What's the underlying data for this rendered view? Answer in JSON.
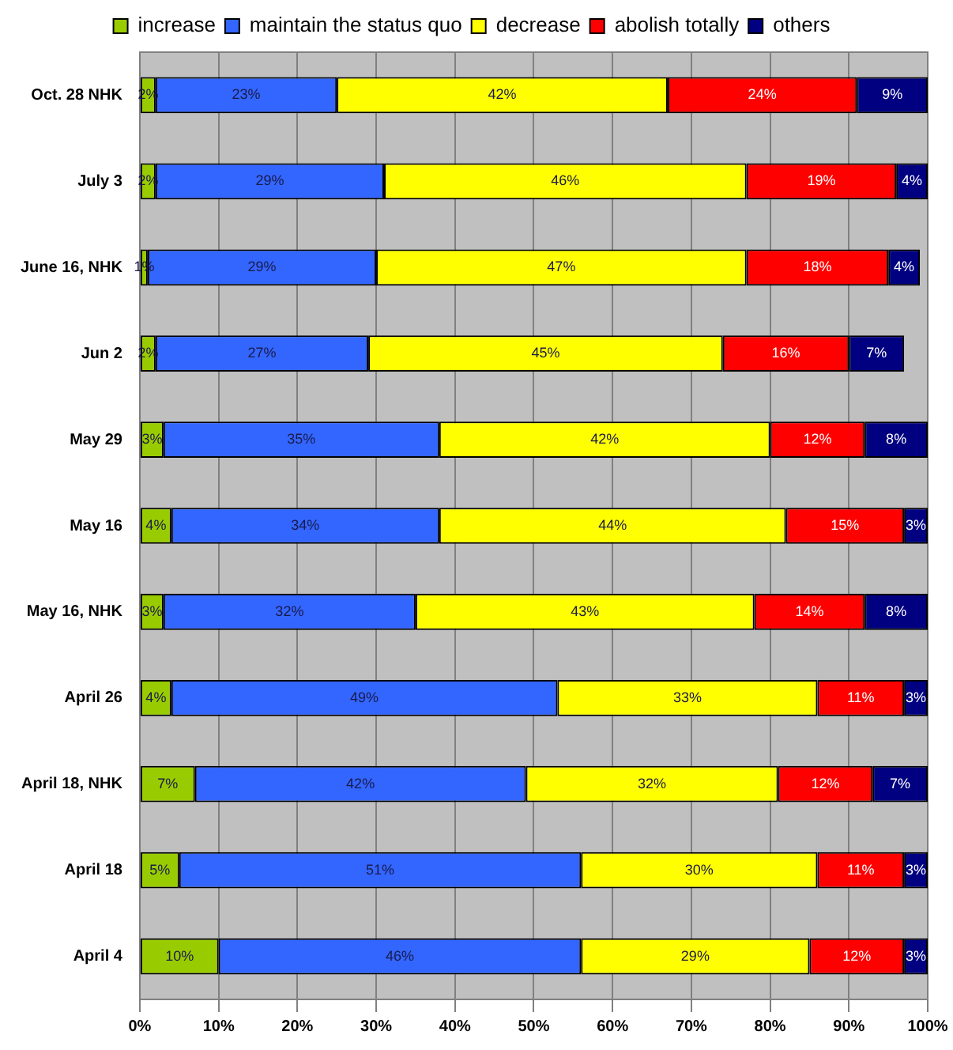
{
  "chart_data": {
    "type": "bar",
    "orientation": "horizontal",
    "stacked": true,
    "categories": [
      "Oct. 28 NHK",
      "July 3",
      "June 16, NHK",
      "Jun 2",
      "May 29",
      "May 16",
      "May 16, NHK",
      "April 26",
      "April 18, NHK",
      "April 18",
      "April 4"
    ],
    "series": [
      {
        "name": "increase",
        "color": "#99cc00",
        "values": [
          2,
          2,
          1,
          2,
          3,
          4,
          3,
          4,
          7,
          5,
          10
        ],
        "value_labels": [
          "2%",
          "2%",
          "1%",
          "2%",
          "3%",
          "4%",
          "3%",
          "4%",
          "7%",
          "5%",
          "10%"
        ]
      },
      {
        "name": "maintain the status quo",
        "color": "#3366ff",
        "values": [
          23,
          29,
          29,
          27,
          35,
          34,
          32,
          49,
          42,
          51,
          46
        ],
        "value_labels": [
          "23%",
          "29%",
          "29%",
          "27%",
          "35%",
          "34%",
          "32%",
          "49%",
          "42%",
          "51%",
          "46%"
        ]
      },
      {
        "name": "decrease",
        "color": "#ffff00",
        "values": [
          42,
          46,
          47,
          45,
          42,
          44,
          43,
          33,
          32,
          30,
          29
        ],
        "value_labels": [
          "42%",
          "46%",
          "47%",
          "45%",
          "42%",
          "44%",
          "43%",
          "33%",
          "32%",
          "30%",
          "29%"
        ]
      },
      {
        "name": "abolish totally",
        "color": "#ff0000",
        "values": [
          24,
          19,
          18,
          16,
          12,
          15,
          14,
          11,
          12,
          11,
          12
        ],
        "value_labels": [
          "24%",
          "19%",
          "18%",
          "16%",
          "12%",
          "15%",
          "14%",
          "11%",
          "12%",
          "11%",
          "12%"
        ]
      },
      {
        "name": "others",
        "color": "#000080",
        "values": [
          9,
          4,
          4,
          7,
          8,
          3,
          8,
          3,
          7,
          3,
          3
        ],
        "value_labels": [
          "9%",
          "4%",
          "4%",
          "7%",
          "8%",
          "3%",
          "8%",
          "3%",
          "7%",
          "3%",
          "3%"
        ]
      }
    ],
    "xlim": [
      0,
      100
    ],
    "xticks": [
      {
        "value": 0,
        "label": "0%"
      },
      {
        "value": 10,
        "label": "10%"
      },
      {
        "value": 20,
        "label": "20%"
      },
      {
        "value": 30,
        "label": "30%"
      },
      {
        "value": 40,
        "label": "40%"
      },
      {
        "value": 50,
        "label": "50%"
      },
      {
        "value": 60,
        "label": "60%"
      },
      {
        "value": 70,
        "label": "70%"
      },
      {
        "value": 80,
        "label": "80%"
      },
      {
        "value": 90,
        "label": "90%"
      },
      {
        "value": 100,
        "label": "100%"
      }
    ],
    "grid": "x",
    "legend": "top"
  }
}
